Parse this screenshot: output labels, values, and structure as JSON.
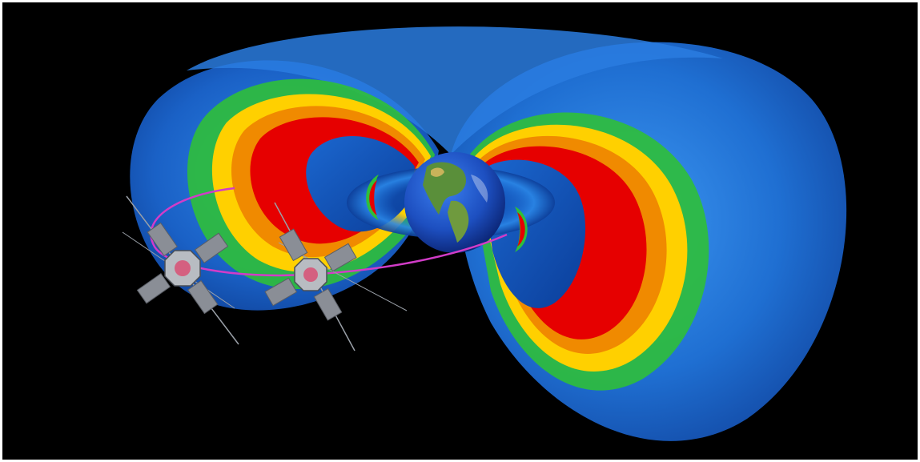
{
  "scene": {
    "subject": "radiation-belts-with-two-spacecraft",
    "colors": {
      "background": "#000000",
      "outer_blue": "#1e6fd6",
      "belt_core": "#e60000",
      "belt_mid": "#ffd000",
      "belt_edge": "#2fd13a",
      "orbit": "#d23cc8",
      "spacecraft": "#8a8e96"
    },
    "icons": [
      "earth-icon",
      "spacecraft-icon",
      "solar-panel-icon",
      "orbit-path-icon"
    ]
  }
}
